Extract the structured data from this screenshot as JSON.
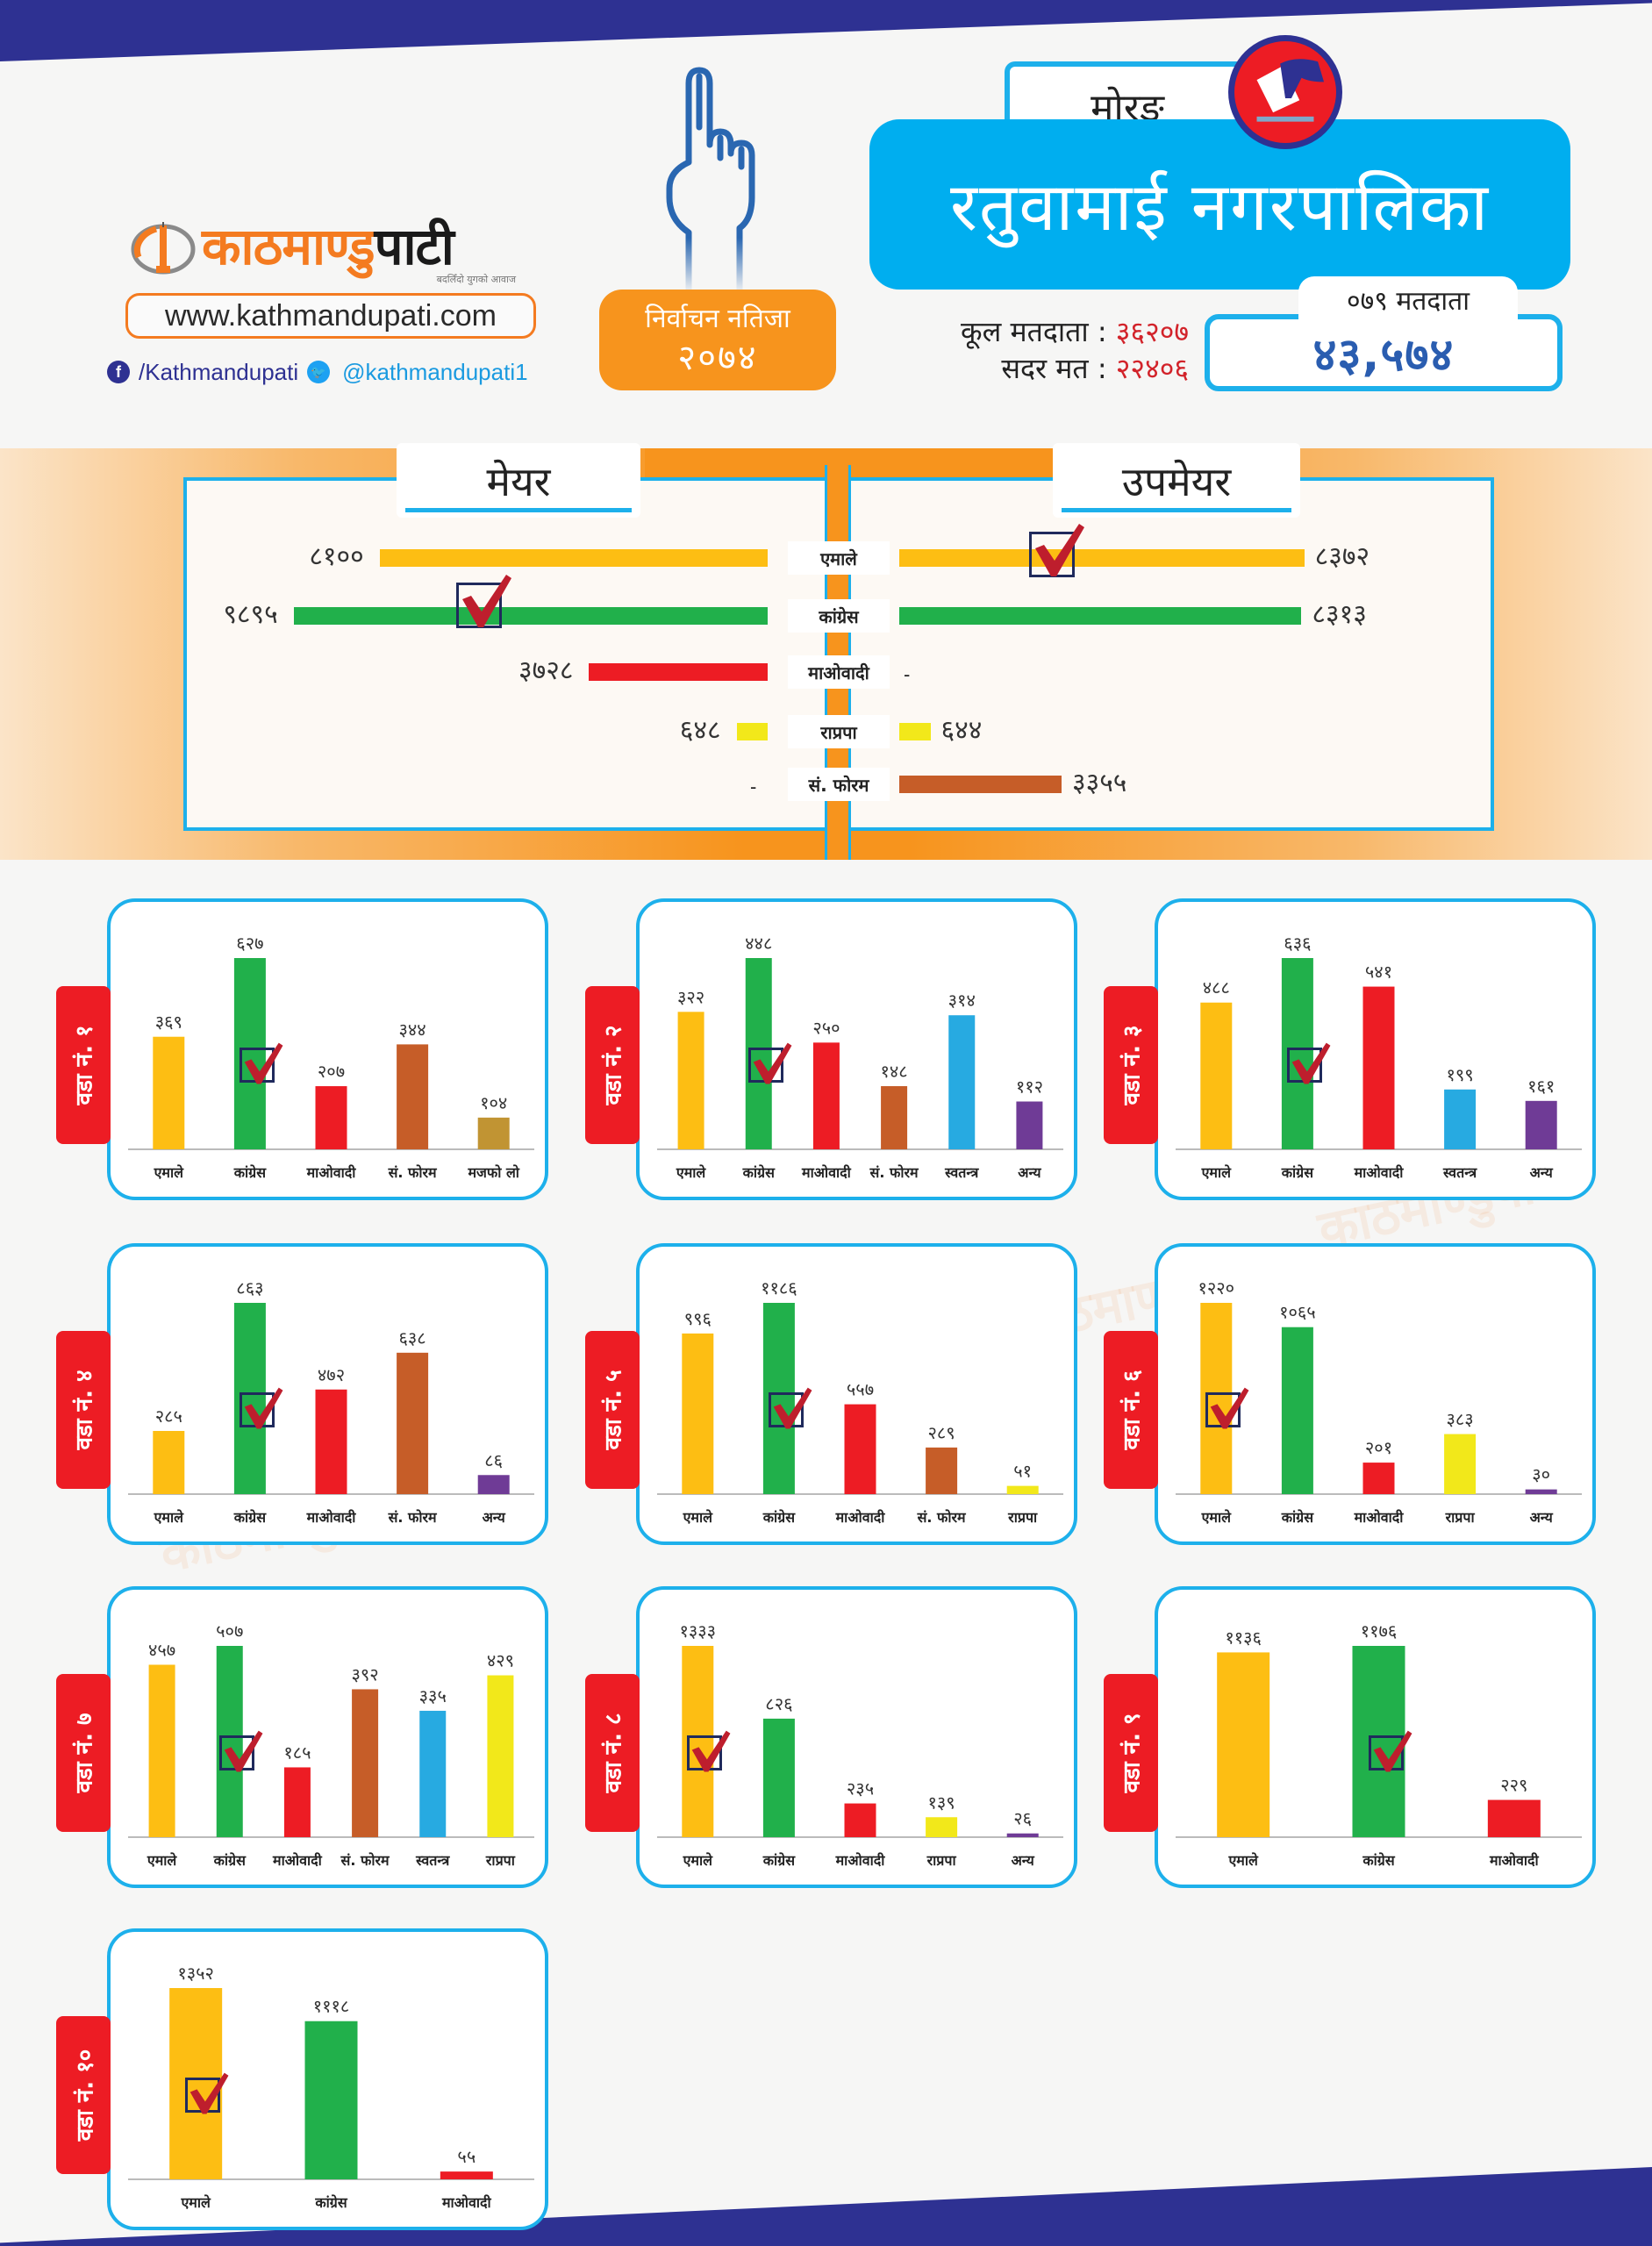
{
  "brand": {
    "logo_text_orange": "काठमाण्डु",
    "logo_text_black": "पाटी",
    "tagline": "बदलिँदो युगको आवाज",
    "url": "www.kathmandupati.com",
    "facebook": "/Kathmandupati",
    "twitter": "@kathmandupati1"
  },
  "election": {
    "title": "निर्वाचन नतिजा",
    "year": "२०७४"
  },
  "header": {
    "district": "मोरङ",
    "municipality": "रतुवामाई नगरपालिका",
    "total_voters_label": "कूल मतदाता :",
    "total_voters_value": "३६२०७",
    "valid_votes_label": "सदर मत :",
    "valid_votes_value": "२२४०६",
    "voters_079_label": "०७९ मतदाता",
    "voters_079_value": "४३,५७४"
  },
  "colors": {
    "एमाले": "#fdbe13",
    "कांग्रेस": "#21b04b",
    "माओवादी": "#ed1c24",
    "राप्रपा": "#f2e81a",
    "सं. फोरम": "#c65d28",
    "स्वतन्त्र": "#27aae1",
    "अन्य": "#6f3b96",
    "मजफो लो": "#c19433",
    "accent_blue": "#1db0eb",
    "navy": "#2e3192",
    "orange": "#f7941d"
  },
  "mayor_section": {
    "mayor_title": "मेयर",
    "deputy_title": "उपमेयर",
    "parties": [
      "एमाले",
      "कांग्रेस",
      "माओवादी",
      "राप्रपा",
      "सं. फोरम"
    ],
    "dash": "-"
  },
  "chart_data": [
    {
      "type": "bar",
      "orientation": "horizontal",
      "title": "मेयर",
      "categories": [
        "एमाले",
        "कांग्रेस",
        "माओवादी",
        "राप्रपा",
        "सं. फोरम"
      ],
      "values": [
        8100,
        9895,
        3728,
        648,
        null
      ],
      "labels": [
        "८१००",
        "९८९५",
        "३७२८",
        "६४८",
        "-"
      ],
      "winner": "कांग्रेस"
    },
    {
      "type": "bar",
      "orientation": "horizontal",
      "title": "उपमेयर",
      "categories": [
        "एमाले",
        "कांग्रेस",
        "माओवादी",
        "राप्रपा",
        "सं. फोरम"
      ],
      "values": [
        8372,
        8313,
        null,
        644,
        3355
      ],
      "labels": [
        "८३७२",
        "८३१३",
        "-",
        "६४४",
        "३३५५"
      ],
      "winner": "एमाले"
    },
    {
      "type": "bar",
      "title": "वडा नं. १",
      "categories": [
        "एमाले",
        "कांग्रेस",
        "माओवादी",
        "सं. फोरम",
        "मजफो लो"
      ],
      "values": [
        369,
        627,
        207,
        344,
        104
      ],
      "labels": [
        "३६९",
        "६२७",
        "२०७",
        "३४४",
        "१०४"
      ],
      "winner": "कांग्रेस"
    },
    {
      "type": "bar",
      "title": "वडा नं. २",
      "categories": [
        "एमाले",
        "कांग्रेस",
        "माओवादी",
        "सं. फोरम",
        "स्वतन्त्र",
        "अन्य"
      ],
      "values": [
        322,
        448,
        250,
        148,
        314,
        112
      ],
      "labels": [
        "३२२",
        "४४८",
        "२५०",
        "१४८",
        "३१४",
        "११२"
      ],
      "winner": "कांग्रेस"
    },
    {
      "type": "bar",
      "title": "वडा नं. ३",
      "categories": [
        "एमाले",
        "कांग्रेस",
        "माओवादी",
        "स्वतन्त्र",
        "अन्य"
      ],
      "values": [
        488,
        636,
        541,
        199,
        161
      ],
      "labels": [
        "४८८",
        "६३६",
        "५४१",
        "१९९",
        "१६१"
      ],
      "winner": "कांग्रेस"
    },
    {
      "type": "bar",
      "title": "वडा नं. ४",
      "categories": [
        "एमाले",
        "कांग्रेस",
        "माओवादी",
        "सं. फोरम",
        "अन्य"
      ],
      "values": [
        285,
        863,
        472,
        638,
        86
      ],
      "labels": [
        "२८५",
        "८६३",
        "४७२",
        "६३८",
        "८६"
      ],
      "winner": "कांग्रेस"
    },
    {
      "type": "bar",
      "title": "वडा नं. ५",
      "categories": [
        "एमाले",
        "कांग्रेस",
        "माओवादी",
        "सं. फोरम",
        "राप्रपा"
      ],
      "values": [
        996,
        1186,
        557,
        289,
        51
      ],
      "labels": [
        "९९६",
        "११८६",
        "५५७",
        "२८९",
        "५१"
      ],
      "winner": "कांग्रेस"
    },
    {
      "type": "bar",
      "title": "वडा नं. ६",
      "categories": [
        "एमाले",
        "कांग्रेस",
        "माओवादी",
        "राप्रपा",
        "अन्य"
      ],
      "values": [
        1220,
        1065,
        201,
        383,
        30
      ],
      "labels": [
        "१२२०",
        "१०६५",
        "२०१",
        "३८३",
        "३०"
      ],
      "winner": "एमाले"
    },
    {
      "type": "bar",
      "title": "वडा नं. ७",
      "categories": [
        "एमाले",
        "कांग्रेस",
        "माओवादी",
        "सं. फोरम",
        "स्वतन्त्र",
        "राप्रपा"
      ],
      "values": [
        457,
        507,
        185,
        392,
        335,
        429
      ],
      "labels": [
        "४५७",
        "५०७",
        "१८५",
        "३९२",
        "३३५",
        "४२९"
      ],
      "winner": "कांग्रेस"
    },
    {
      "type": "bar",
      "title": "वडा नं. ८",
      "categories": [
        "एमाले",
        "कांग्रेस",
        "माओवादी",
        "राप्रपा",
        "अन्य"
      ],
      "values": [
        1333,
        826,
        235,
        139,
        26
      ],
      "labels": [
        "१३३३",
        "८२६",
        "२३५",
        "१३९",
        "२६"
      ],
      "winner": "एमाले"
    },
    {
      "type": "bar",
      "title": "वडा नं. ९",
      "categories": [
        "एमाले",
        "कांग्रेस",
        "माओवादी"
      ],
      "values": [
        1136,
        1176,
        229
      ],
      "labels": [
        "११३६",
        "११७६",
        "२२९"
      ],
      "winner": "कांग्रेस"
    },
    {
      "type": "bar",
      "title": "वडा नं. १०",
      "categories": [
        "एमाले",
        "कांग्रेस",
        "माओवादी"
      ],
      "values": [
        1352,
        1118,
        55
      ],
      "labels": [
        "१३५२",
        "१११८",
        "५५"
      ],
      "winner": "एमाले"
    }
  ]
}
